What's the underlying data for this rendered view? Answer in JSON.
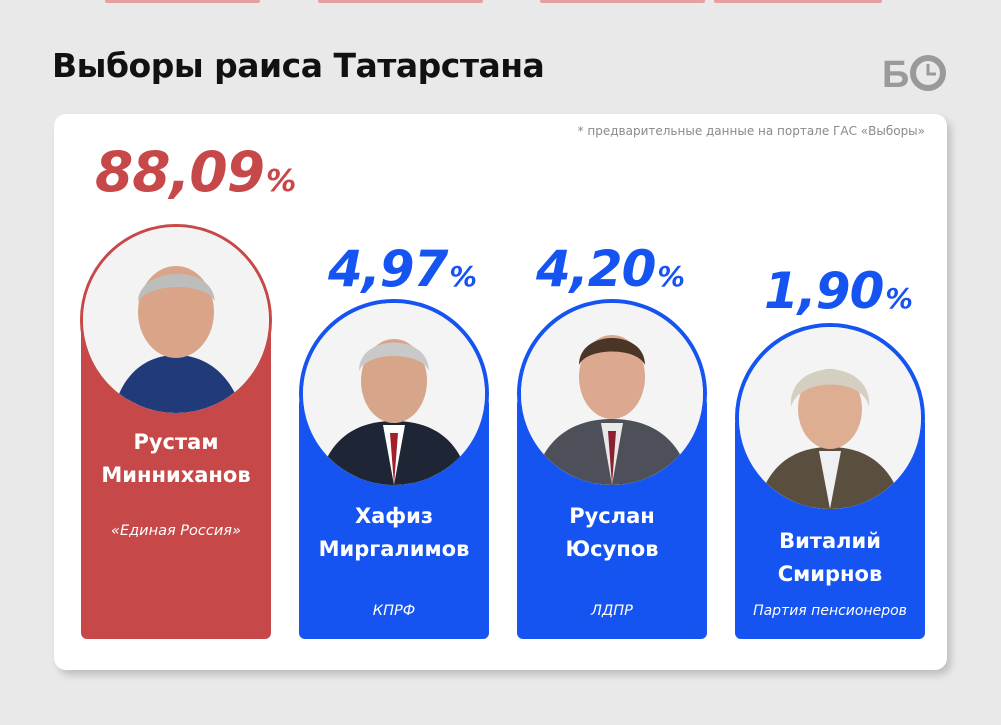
{
  "header": {
    "title": "Выборы раиса Татарстана",
    "logo_text": "БО"
  },
  "note": "* предварительные данные на портале ГАС «Выборы»",
  "colors": {
    "winner": "#c64848",
    "others": "#1554f0",
    "winner_text": "#c64848",
    "others_text": "#1554f0"
  },
  "candidates": [
    {
      "pct_text": "88,09",
      "sign": "%",
      "first": "Рустам",
      "last": "Минниханов",
      "party": "«Единая Россия»"
    },
    {
      "pct_text": "4,97",
      "sign": "%",
      "first": "Хафиз",
      "last": "Миргалимов",
      "party": "КПРФ"
    },
    {
      "pct_text": "4,20",
      "sign": "%",
      "first": "Руслан",
      "last": "Юсупов",
      "party": "ЛДПР"
    },
    {
      "pct_text": "1,90",
      "sign": "%",
      "first": "Виталий",
      "last": "Смирнов",
      "party": "Партия пенсионеров"
    }
  ],
  "chart_data": {
    "type": "bar",
    "title": "Выборы раиса Татарстана",
    "categories": [
      "Рустам Минниханов",
      "Хафиз Миргалимов",
      "Руслан Юсупов",
      "Виталий Смирнов"
    ],
    "values": [
      88.09,
      4.97,
      4.2,
      1.9
    ],
    "parties": [
      "«Единая Россия»",
      "КПРФ",
      "ЛДПР",
      "Партия пенсионеров"
    ],
    "unit": "%"
  }
}
